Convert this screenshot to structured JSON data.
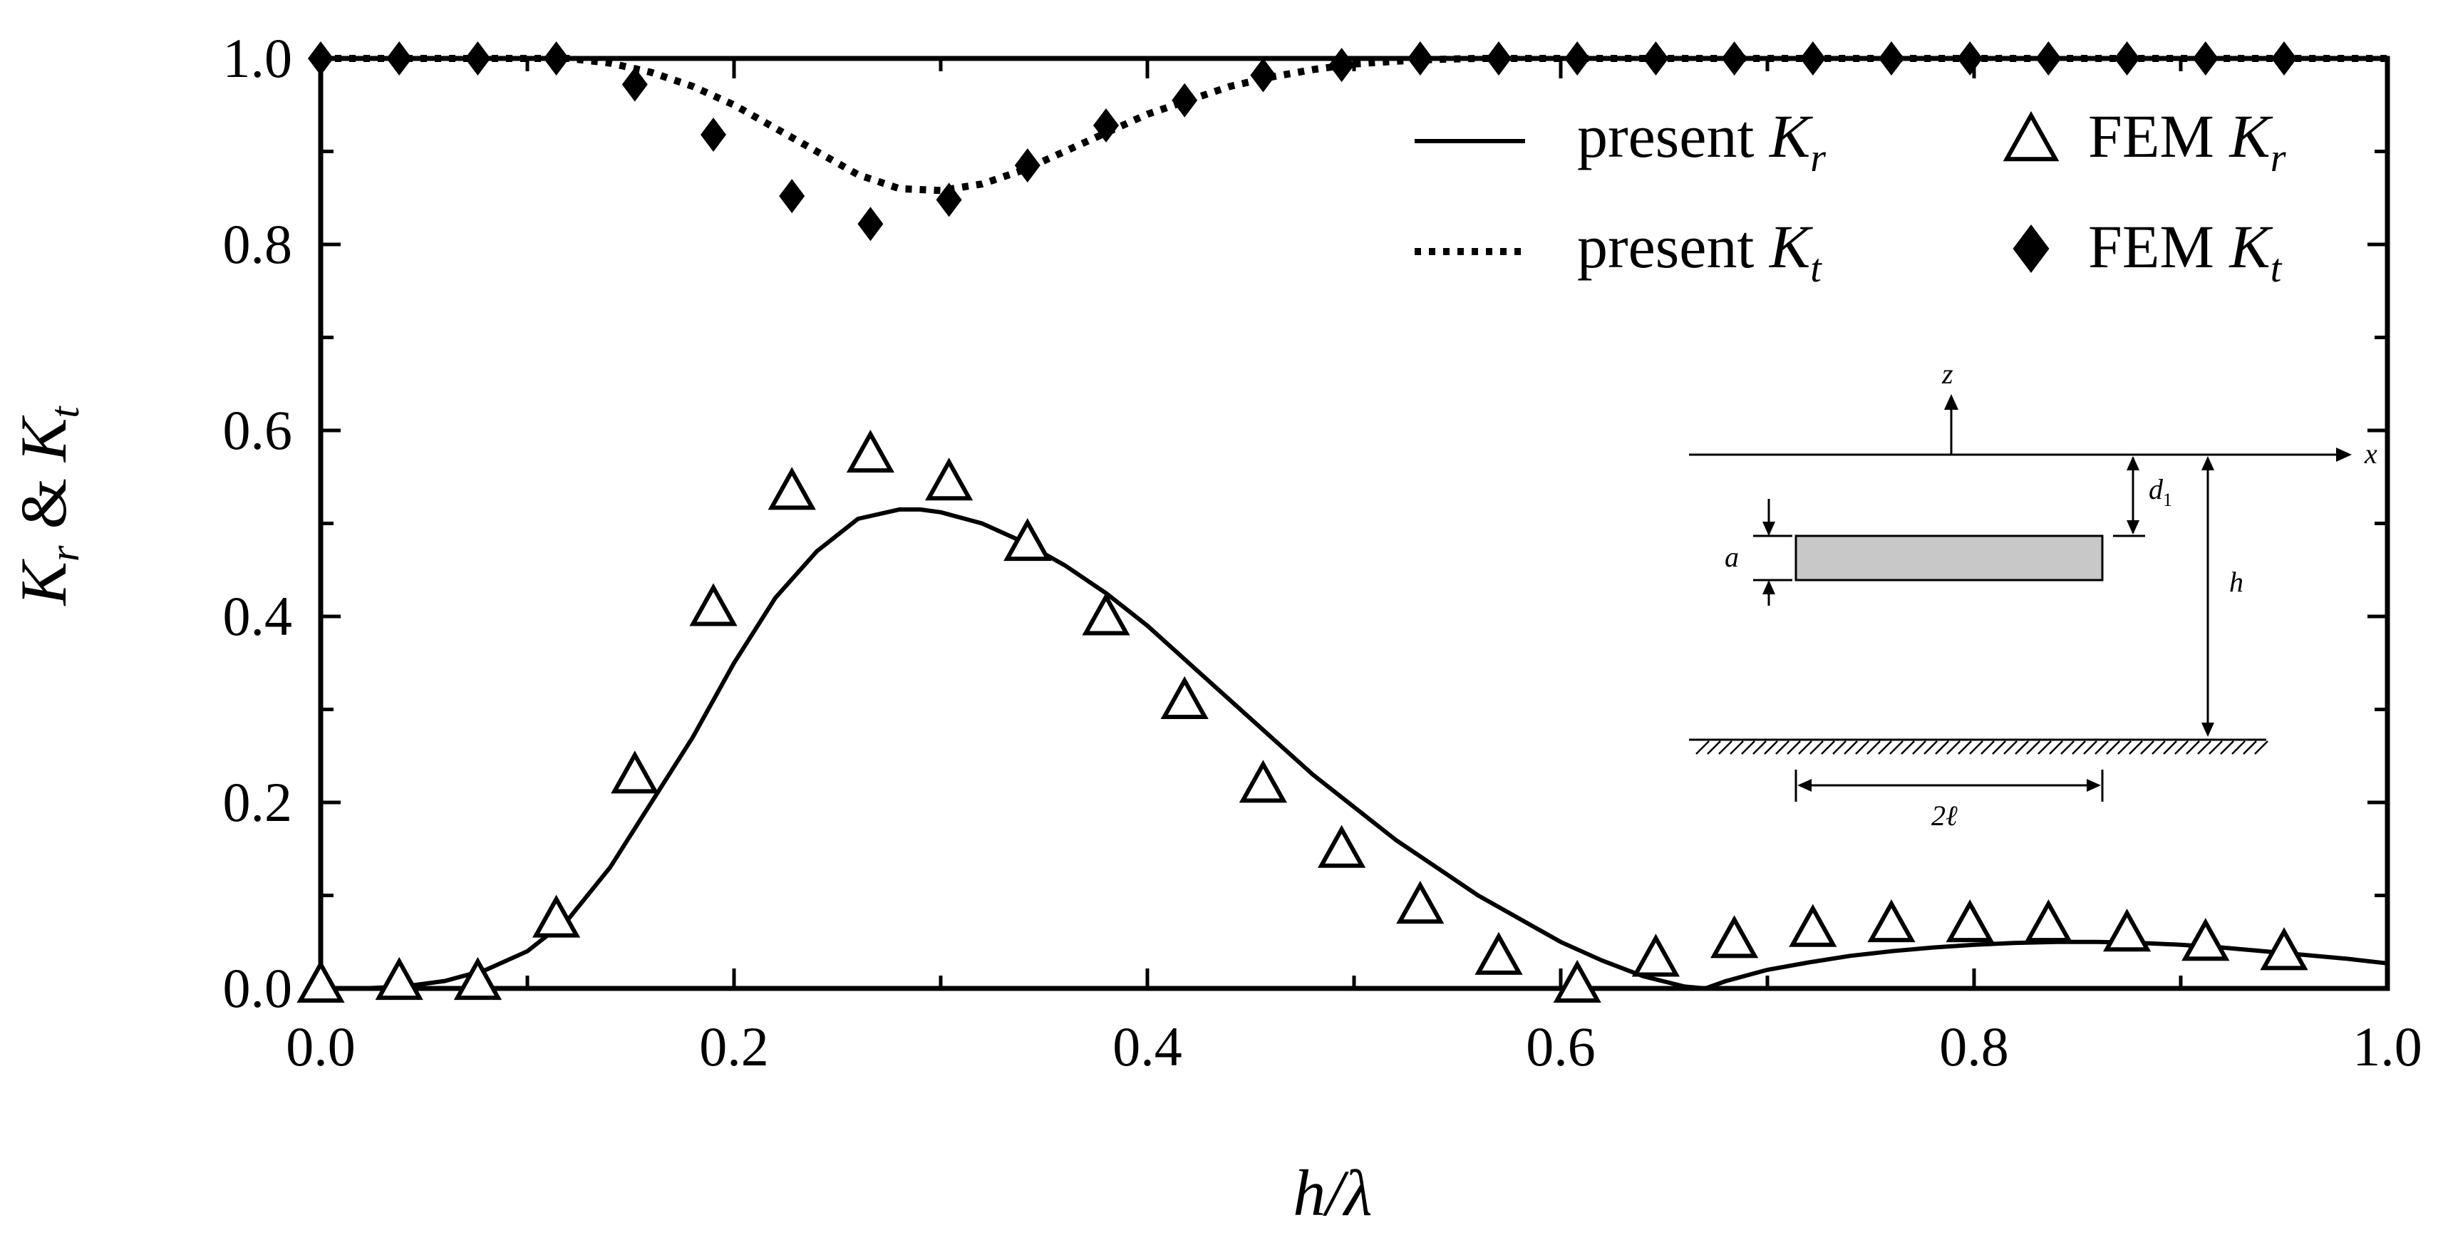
{
  "chart_data": {
    "type": "line",
    "xlabel": "h/λ",
    "ylabel": "K_r & K_t",
    "xlim": [
      0.0,
      1.0
    ],
    "ylim": [
      0.0,
      1.0
    ],
    "x_ticks": [
      "0.0",
      "0.2",
      "0.4",
      "0.6",
      "0.8",
      "1.0"
    ],
    "y_ticks": [
      "0.0",
      "0.2",
      "0.4",
      "0.6",
      "0.8",
      "1.0"
    ],
    "grid": false,
    "legend_position": "top-right",
    "legend": [
      {
        "prefix": "present",
        "sym": "K",
        "sub": "r",
        "marker": "solid-line"
      },
      {
        "prefix": "FEM",
        "sym": "K",
        "sub": "r",
        "marker": "open-triangle"
      },
      {
        "prefix": "present",
        "sym": "K",
        "sub": "t",
        "marker": "dotted-line"
      },
      {
        "prefix": "FEM",
        "sym": "K",
        "sub": "t",
        "marker": "filled-diamond"
      }
    ],
    "series": [
      {
        "style": "solid",
        "x": [
          0.0,
          0.02,
          0.04,
          0.06,
          0.08,
          0.1,
          0.12,
          0.14,
          0.16,
          0.18,
          0.2,
          0.22,
          0.24,
          0.26,
          0.28,
          0.29,
          0.3,
          0.32,
          0.34,
          0.36,
          0.38,
          0.4,
          0.42,
          0.44,
          0.46,
          0.48,
          0.5,
          0.52,
          0.54,
          0.56,
          0.58,
          0.6,
          0.62,
          0.64,
          0.66,
          0.67,
          0.68,
          0.7,
          0.72,
          0.74,
          0.76,
          0.78,
          0.8,
          0.82,
          0.84,
          0.86,
          0.88,
          0.9,
          0.92,
          0.94,
          0.96,
          0.98,
          1.0
        ],
        "y": [
          0.0,
          0.0,
          0.002,
          0.008,
          0.02,
          0.04,
          0.075,
          0.13,
          0.2,
          0.27,
          0.35,
          0.42,
          0.47,
          0.505,
          0.515,
          0.515,
          0.512,
          0.5,
          0.48,
          0.455,
          0.425,
          0.39,
          0.35,
          0.31,
          0.27,
          0.23,
          0.195,
          0.16,
          0.13,
          0.1,
          0.075,
          0.05,
          0.03,
          0.013,
          0.002,
          0.0,
          0.008,
          0.02,
          0.028,
          0.035,
          0.04,
          0.044,
          0.047,
          0.049,
          0.05,
          0.05,
          0.049,
          0.047,
          0.044,
          0.04,
          0.036,
          0.032,
          0.027
        ]
      },
      {
        "style": "dotted",
        "x": [
          0.0,
          0.04,
          0.08,
          0.12,
          0.14,
          0.16,
          0.18,
          0.2,
          0.22,
          0.24,
          0.26,
          0.28,
          0.3,
          0.32,
          0.34,
          0.36,
          0.38,
          0.4,
          0.42,
          0.44,
          0.46,
          0.48,
          0.5,
          0.52,
          0.54,
          0.56,
          0.6,
          0.7,
          0.8,
          0.9,
          1.0
        ],
        "y": [
          1.0,
          1.0,
          1.0,
          1.0,
          0.995,
          0.985,
          0.97,
          0.95,
          0.925,
          0.9,
          0.875,
          0.86,
          0.858,
          0.865,
          0.88,
          0.9,
          0.92,
          0.94,
          0.955,
          0.97,
          0.98,
          0.988,
          0.994,
          0.997,
          0.999,
          1.0,
          1.0,
          1.0,
          1.0,
          1.0,
          1.0
        ]
      },
      {
        "style": "open-triangle",
        "x": [
          0.0,
          0.038,
          0.076,
          0.114,
          0.152,
          0.19,
          0.228,
          0.266,
          0.304,
          0.342,
          0.38,
          0.418,
          0.456,
          0.494,
          0.532,
          0.57,
          0.608,
          0.646,
          0.684,
          0.722,
          0.76,
          0.798,
          0.836,
          0.874,
          0.912,
          0.95
        ],
        "y": [
          0.0,
          0.003,
          0.003,
          0.07,
          0.225,
          0.405,
          0.53,
          0.57,
          0.54,
          0.475,
          0.395,
          0.305,
          0.215,
          0.145,
          0.085,
          0.03,
          0.0,
          0.028,
          0.048,
          0.06,
          0.065,
          0.065,
          0.065,
          0.055,
          0.045,
          0.035
        ]
      },
      {
        "style": "filled-diamond",
        "x": [
          0.0,
          0.038,
          0.076,
          0.114,
          0.152,
          0.19,
          0.228,
          0.266,
          0.304,
          0.342,
          0.38,
          0.418,
          0.456,
          0.494,
          0.532,
          0.57,
          0.608,
          0.646,
          0.684,
          0.722,
          0.76,
          0.798,
          0.836,
          0.874,
          0.912,
          0.95
        ],
        "y": [
          1.0,
          1.0,
          1.0,
          1.0,
          0.972,
          0.918,
          0.852,
          0.822,
          0.848,
          0.885,
          0.928,
          0.955,
          0.982,
          0.993,
          1.0,
          1.0,
          1.0,
          1.0,
          1.0,
          1.0,
          1.0,
          1.0,
          1.0,
          1.0,
          1.0,
          1.0
        ]
      }
    ]
  },
  "inset": {
    "z_label": "z",
    "x_label": "x",
    "d_label": "d",
    "d_sub": "1",
    "a_label": "a",
    "h_label": "h",
    "width_label": "2ℓ",
    "plate_color": "#c8c8c8"
  }
}
